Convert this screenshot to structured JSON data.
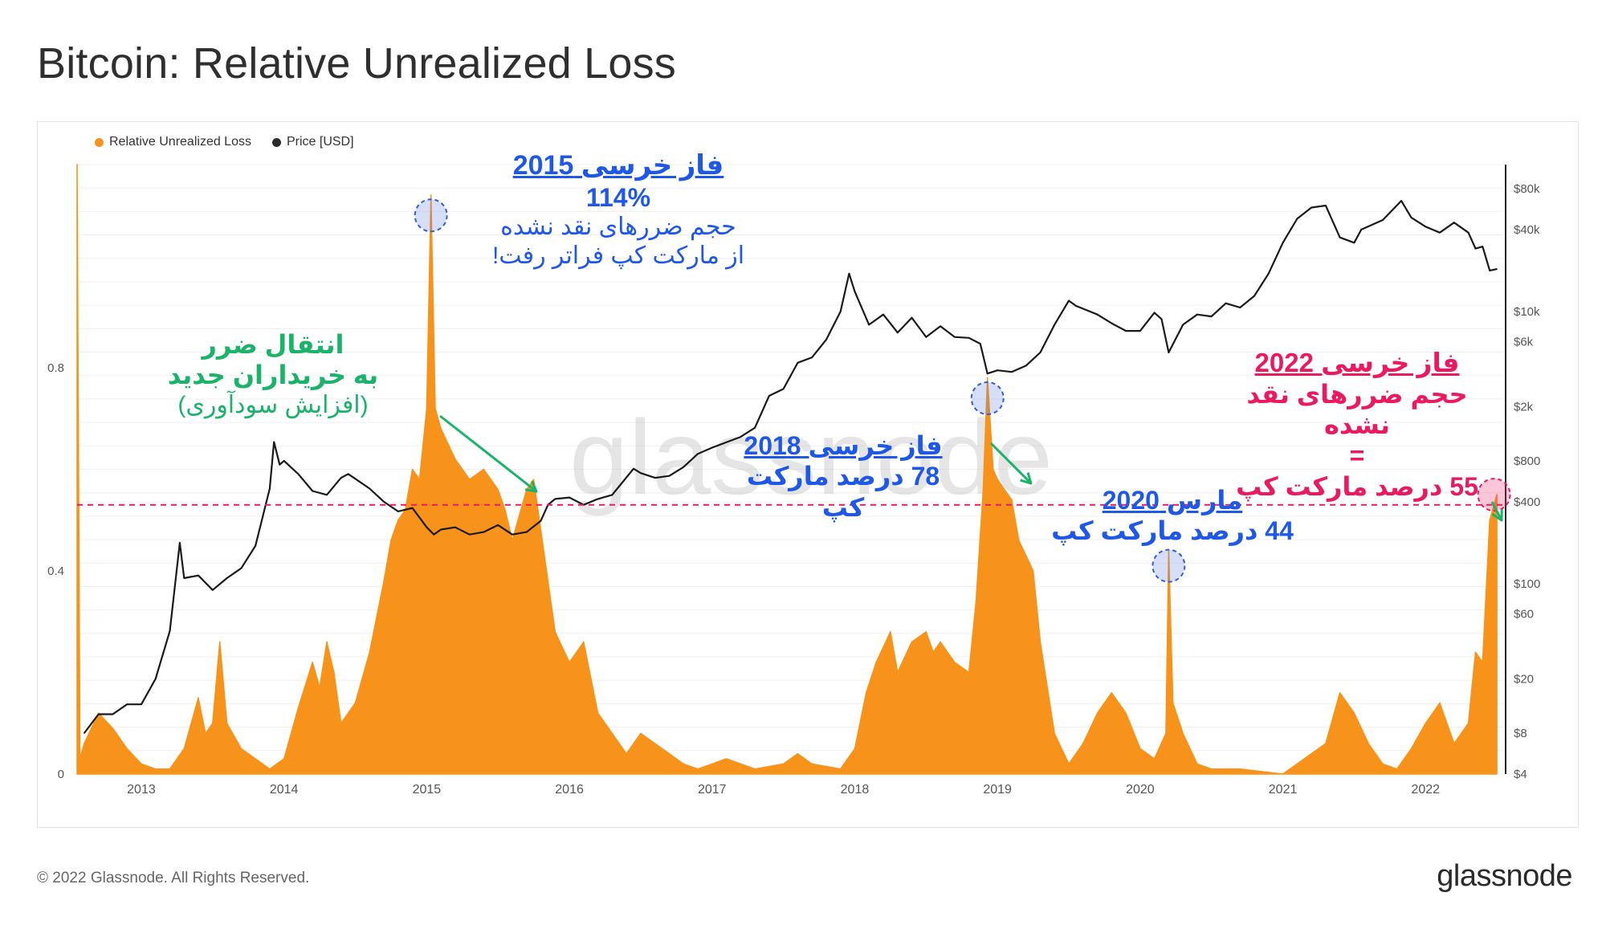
{
  "title": "Bitcoin: Relative Unrealized Loss",
  "footer": {
    "copyright": "© 2022 Glassnode. All Rights Reserved.",
    "logo": "glassnode"
  },
  "watermark": "glassnode",
  "colors": {
    "loss": "#f7931a",
    "price": "#1a1a1a",
    "threshold": "#ea1a62",
    "blue": "#1f57e6",
    "green": "#1bb36a",
    "pink": "#ea1a62"
  },
  "legend": [
    {
      "label": "Relative Unrealized Loss",
      "color": "#f7931a"
    },
    {
      "label": "Price [USD]",
      "color": "#2b2b2b"
    }
  ],
  "annotations": {
    "bear2015": {
      "title": "فاز خرسی 2015",
      "value": "114%",
      "line1": "حجم ضررهای نقد نشده",
      "line2": "از مارکت کپ فراتر رفت!"
    },
    "transfer": {
      "line1": "انتقال ضرر",
      "line2": "به خریداران جدید",
      "line3": "(افزایش سودآوری)"
    },
    "bear2018": {
      "title": "فاز خرسی 2018",
      "line1": "78 درصد مارکت کپ"
    },
    "march2020": {
      "title": "مارس 2020",
      "line1": "44 درصد مارکت کپ"
    },
    "bear2022": {
      "title": "فاز خرسی 2022",
      "line1": "حجم ضررهای نقد نشده",
      "line2": "=",
      "line3": "55 درصد مارکت کپ"
    }
  },
  "chart_data": {
    "type": "area",
    "title": "Bitcoin: Relative Unrealized Loss",
    "x_ticks": [
      "2013",
      "2014",
      "2015",
      "2016",
      "2017",
      "2018",
      "2019",
      "2020",
      "2021",
      "2022"
    ],
    "y_left_ticks": [
      "0",
      "0.4",
      "0.8"
    ],
    "y_left_range": [
      0,
      1.2
    ],
    "y_right_ticks": [
      "$4",
      "$8",
      "$20",
      "$60",
      "$100",
      "$400",
      "$800",
      "$2k",
      "$6k",
      "$10k",
      "$40k",
      "$80k"
    ],
    "y_right_scale": "log",
    "y_right_range": [
      4,
      120000
    ],
    "threshold": 0.53,
    "series": [
      {
        "name": "Relative Unrealized Loss",
        "points": [
          [
            2012.55,
            1.2
          ],
          [
            2012.57,
            0.03
          ],
          [
            2012.6,
            0.06
          ],
          [
            2012.7,
            0.12
          ],
          [
            2012.8,
            0.09
          ],
          [
            2012.9,
            0.05
          ],
          [
            2013.0,
            0.02
          ],
          [
            2013.1,
            0.01
          ],
          [
            2013.2,
            0.01
          ],
          [
            2013.3,
            0.05
          ],
          [
            2013.4,
            0.15
          ],
          [
            2013.45,
            0.08
          ],
          [
            2013.5,
            0.1
          ],
          [
            2013.55,
            0.26
          ],
          [
            2013.6,
            0.1
          ],
          [
            2013.7,
            0.05
          ],
          [
            2013.8,
            0.03
          ],
          [
            2013.9,
            0.01
          ],
          [
            2014.0,
            0.03
          ],
          [
            2014.1,
            0.13
          ],
          [
            2014.2,
            0.22
          ],
          [
            2014.25,
            0.17
          ],
          [
            2014.3,
            0.26
          ],
          [
            2014.35,
            0.2
          ],
          [
            2014.4,
            0.1
          ],
          [
            2014.5,
            0.14
          ],
          [
            2014.6,
            0.24
          ],
          [
            2014.7,
            0.38
          ],
          [
            2014.75,
            0.46
          ],
          [
            2014.8,
            0.5
          ],
          [
            2014.85,
            0.52
          ],
          [
            2014.9,
            0.6
          ],
          [
            2014.95,
            0.58
          ],
          [
            2015.0,
            0.72
          ],
          [
            2015.03,
            1.14
          ],
          [
            2015.06,
            0.72
          ],
          [
            2015.1,
            0.68
          ],
          [
            2015.2,
            0.62
          ],
          [
            2015.3,
            0.58
          ],
          [
            2015.4,
            0.6
          ],
          [
            2015.5,
            0.56
          ],
          [
            2015.55,
            0.52
          ],
          [
            2015.6,
            0.46
          ],
          [
            2015.7,
            0.56
          ],
          [
            2015.75,
            0.58
          ],
          [
            2015.8,
            0.48
          ],
          [
            2015.9,
            0.28
          ],
          [
            2016.0,
            0.22
          ],
          [
            2016.1,
            0.26
          ],
          [
            2016.2,
            0.12
          ],
          [
            2016.3,
            0.08
          ],
          [
            2016.4,
            0.04
          ],
          [
            2016.5,
            0.08
          ],
          [
            2016.6,
            0.06
          ],
          [
            2016.7,
            0.04
          ],
          [
            2016.8,
            0.02
          ],
          [
            2016.9,
            0.01
          ],
          [
            2017.0,
            0.02
          ],
          [
            2017.1,
            0.03
          ],
          [
            2017.3,
            0.01
          ],
          [
            2017.5,
            0.02
          ],
          [
            2017.6,
            0.04
          ],
          [
            2017.7,
            0.02
          ],
          [
            2017.9,
            0.01
          ],
          [
            2018.0,
            0.05
          ],
          [
            2018.08,
            0.16
          ],
          [
            2018.15,
            0.22
          ],
          [
            2018.25,
            0.28
          ],
          [
            2018.3,
            0.2
          ],
          [
            2018.4,
            0.26
          ],
          [
            2018.5,
            0.28
          ],
          [
            2018.55,
            0.24
          ],
          [
            2018.6,
            0.26
          ],
          [
            2018.7,
            0.22
          ],
          [
            2018.8,
            0.2
          ],
          [
            2018.85,
            0.34
          ],
          [
            2018.9,
            0.56
          ],
          [
            2018.93,
            0.78
          ],
          [
            2018.97,
            0.6
          ],
          [
            2019.0,
            0.58
          ],
          [
            2019.05,
            0.56
          ],
          [
            2019.1,
            0.54
          ],
          [
            2019.15,
            0.46
          ],
          [
            2019.25,
            0.4
          ],
          [
            2019.3,
            0.26
          ],
          [
            2019.4,
            0.08
          ],
          [
            2019.5,
            0.02
          ],
          [
            2019.6,
            0.06
          ],
          [
            2019.7,
            0.12
          ],
          [
            2019.8,
            0.16
          ],
          [
            2019.9,
            0.12
          ],
          [
            2020.0,
            0.05
          ],
          [
            2020.1,
            0.03
          ],
          [
            2020.18,
            0.08
          ],
          [
            2020.2,
            0.44
          ],
          [
            2020.23,
            0.14
          ],
          [
            2020.3,
            0.08
          ],
          [
            2020.4,
            0.02
          ],
          [
            2020.5,
            0.01
          ],
          [
            2020.7,
            0.01
          ],
          [
            2021.0,
            0.0
          ],
          [
            2021.3,
            0.06
          ],
          [
            2021.4,
            0.16
          ],
          [
            2021.5,
            0.12
          ],
          [
            2021.6,
            0.06
          ],
          [
            2021.7,
            0.02
          ],
          [
            2021.8,
            0.01
          ],
          [
            2021.9,
            0.05
          ],
          [
            2022.0,
            0.1
          ],
          [
            2022.1,
            0.14
          ],
          [
            2022.2,
            0.06
          ],
          [
            2022.3,
            0.1
          ],
          [
            2022.35,
            0.24
          ],
          [
            2022.4,
            0.22
          ],
          [
            2022.45,
            0.5
          ],
          [
            2022.5,
            0.55
          ]
        ]
      },
      {
        "name": "Price [USD]",
        "points": [
          [
            2012.6,
            8
          ],
          [
            2012.7,
            11
          ],
          [
            2012.8,
            11
          ],
          [
            2012.9,
            13
          ],
          [
            2013.0,
            13
          ],
          [
            2013.1,
            20
          ],
          [
            2013.2,
            45
          ],
          [
            2013.27,
            200
          ],
          [
            2013.3,
            110
          ],
          [
            2013.4,
            115
          ],
          [
            2013.5,
            90
          ],
          [
            2013.6,
            110
          ],
          [
            2013.7,
            130
          ],
          [
            2013.8,
            190
          ],
          [
            2013.9,
            500
          ],
          [
            2013.93,
            1100
          ],
          [
            2013.97,
            750
          ],
          [
            2014.0,
            800
          ],
          [
            2014.1,
            640
          ],
          [
            2014.2,
            480
          ],
          [
            2014.3,
            450
          ],
          [
            2014.4,
            600
          ],
          [
            2014.45,
            640
          ],
          [
            2014.5,
            590
          ],
          [
            2014.6,
            500
          ],
          [
            2014.7,
            400
          ],
          [
            2014.8,
            340
          ],
          [
            2014.9,
            360
          ],
          [
            2015.0,
            260
          ],
          [
            2015.05,
            230
          ],
          [
            2015.1,
            250
          ],
          [
            2015.2,
            260
          ],
          [
            2015.3,
            230
          ],
          [
            2015.4,
            240
          ],
          [
            2015.5,
            270
          ],
          [
            2015.6,
            230
          ],
          [
            2015.7,
            240
          ],
          [
            2015.8,
            290
          ],
          [
            2015.85,
            380
          ],
          [
            2015.9,
            420
          ],
          [
            2016.0,
            430
          ],
          [
            2016.1,
            380
          ],
          [
            2016.2,
            420
          ],
          [
            2016.3,
            450
          ],
          [
            2016.45,
            700
          ],
          [
            2016.5,
            650
          ],
          [
            2016.6,
            600
          ],
          [
            2016.7,
            620
          ],
          [
            2016.8,
            720
          ],
          [
            2016.9,
            900
          ],
          [
            2017.0,
            1000
          ],
          [
            2017.2,
            1200
          ],
          [
            2017.3,
            1400
          ],
          [
            2017.4,
            2400
          ],
          [
            2017.5,
            2700
          ],
          [
            2017.6,
            4200
          ],
          [
            2017.7,
            4600
          ],
          [
            2017.8,
            6200
          ],
          [
            2017.9,
            10000
          ],
          [
            2017.96,
            19000
          ],
          [
            2018.0,
            14000
          ],
          [
            2018.1,
            8000
          ],
          [
            2018.2,
            9500
          ],
          [
            2018.3,
            7000
          ],
          [
            2018.4,
            9000
          ],
          [
            2018.5,
            6500
          ],
          [
            2018.6,
            7800
          ],
          [
            2018.7,
            6500
          ],
          [
            2018.8,
            6400
          ],
          [
            2018.88,
            5800
          ],
          [
            2018.93,
            3500
          ],
          [
            2019.0,
            3700
          ],
          [
            2019.1,
            3600
          ],
          [
            2019.2,
            4000
          ],
          [
            2019.3,
            5000
          ],
          [
            2019.4,
            8000
          ],
          [
            2019.5,
            12000
          ],
          [
            2019.55,
            11000
          ],
          [
            2019.7,
            9500
          ],
          [
            2019.8,
            8200
          ],
          [
            2019.9,
            7200
          ],
          [
            2020.0,
            7200
          ],
          [
            2020.1,
            9800
          ],
          [
            2020.15,
            8800
          ],
          [
            2020.2,
            5000
          ],
          [
            2020.3,
            8000
          ],
          [
            2020.4,
            9500
          ],
          [
            2020.5,
            9200
          ],
          [
            2020.6,
            11500
          ],
          [
            2020.7,
            10700
          ],
          [
            2020.8,
            13000
          ],
          [
            2020.9,
            19000
          ],
          [
            2021.0,
            32000
          ],
          [
            2021.1,
            48000
          ],
          [
            2021.2,
            58000
          ],
          [
            2021.3,
            60000
          ],
          [
            2021.4,
            35000
          ],
          [
            2021.5,
            32000
          ],
          [
            2021.55,
            40000
          ],
          [
            2021.7,
            47000
          ],
          [
            2021.83,
            65000
          ],
          [
            2021.9,
            49000
          ],
          [
            2022.0,
            42000
          ],
          [
            2022.1,
            38000
          ],
          [
            2022.2,
            45000
          ],
          [
            2022.3,
            38000
          ],
          [
            2022.35,
            29000
          ],
          [
            2022.4,
            30000
          ],
          [
            2022.45,
            20000
          ],
          [
            2022.5,
            20500
          ]
        ]
      }
    ]
  }
}
